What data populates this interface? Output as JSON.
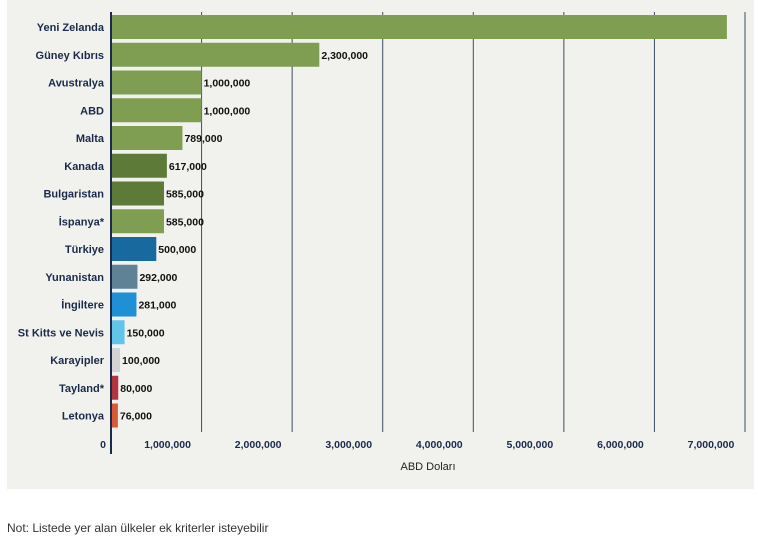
{
  "chart_data": {
    "type": "bar",
    "orientation": "horizontal",
    "categories": [
      "Yeni Zelanda",
      "Güney Kıbrıs",
      "Avustralya",
      "ABD",
      "Malta",
      "Kanada",
      "Bulgaristan",
      "İspanya*",
      "Türkiye",
      "Yunanistan",
      "İngiltere",
      "St Kitts ve Nevis",
      "Karayipler",
      "Tayland*",
      "Letonya"
    ],
    "values": [
      6800000,
      2300000,
      1000000,
      1000000,
      789000,
      617000,
      585000,
      585000,
      500000,
      292000,
      281000,
      150000,
      100000,
      80000,
      76000
    ],
    "value_labels": [
      "",
      "2,300,000",
      "1,000,000",
      "1,000,000",
      "789,000",
      "617,000",
      "585,000",
      "585,000",
      "500,000",
      "292,000",
      "281,000",
      "150,000",
      "100,000",
      "80,000",
      "76,000"
    ],
    "bar_colors": [
      "#7f9e52",
      "#7f9e52",
      "#7f9e52",
      "#7f9e52",
      "#7f9e52",
      "#5e7a38",
      "#5e7a38",
      "#7f9e52",
      "#17699e",
      "#5f8296",
      "#1f8fd6",
      "#61c5ea",
      "#d3d3d3",
      "#b2343e",
      "#db5a35"
    ],
    "xlim": [
      0,
      7000000
    ],
    "x_ticks": [
      0,
      1000000,
      2000000,
      3000000,
      4000000,
      5000000,
      6000000,
      7000000
    ],
    "x_tick_labels": [
      "0",
      "1,000,000",
      "2,000,000",
      "3,000,000",
      "4,000,000",
      "5,000,000",
      "6,000,000",
      "7,000,000"
    ],
    "xlabel": "ABD Doları",
    "grid": true
  },
  "footnote": "Not: Listede yer alan ülkeler ek kriterler isteyebilir"
}
